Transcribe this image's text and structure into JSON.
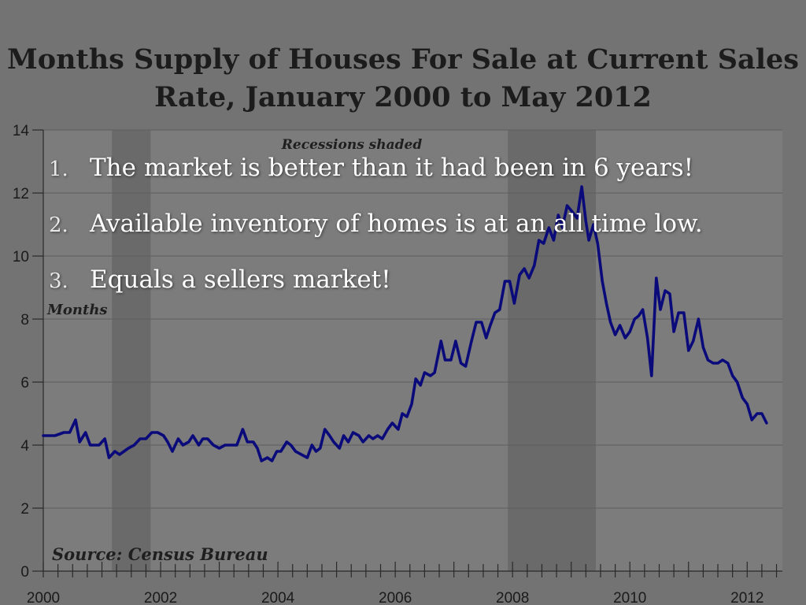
{
  "colors": {
    "background": "#737373",
    "plot_background": "#7c7c7c",
    "recession_band": "#6a6a6a",
    "line": "#0a0a7a",
    "text_overlay": "#ffffff"
  },
  "overlay_points": [
    {
      "number": "1.",
      "text": "The market is better than it had been in 6 years!"
    },
    {
      "number": "2.",
      "text": "Available inventory of homes is at an all time low."
    },
    {
      "number": "3.",
      "text": "Equals a sellers market!"
    }
  ],
  "chart_data": {
    "type": "line",
    "title": "Months Supply of Houses For Sale at Current Sales Rate, January 2000 to May 2012",
    "ylabel": "Months",
    "xlabel": "",
    "annotations": [
      "Recessions shaded",
      "Source: Census Bureau"
    ],
    "ylim": [
      0,
      14
    ],
    "xlim": [
      2000,
      2012.6
    ],
    "y_ticks": [
      0,
      2,
      4,
      6,
      8,
      10,
      12,
      14
    ],
    "x_ticks": [
      2000,
      2002,
      2004,
      2006,
      2008,
      2010,
      2012
    ],
    "grid": true,
    "recessions": [
      [
        2001.17,
        2001.83
      ],
      [
        2007.92,
        2009.42
      ]
    ],
    "series": [
      {
        "values": [
          [
            2000.0,
            4.3
          ],
          [
            2000.2,
            4.3
          ],
          [
            2000.35,
            4.4
          ],
          [
            2000.45,
            4.4
          ],
          [
            2000.55,
            4.8
          ],
          [
            2000.62,
            4.1
          ],
          [
            2000.72,
            4.4
          ],
          [
            2000.8,
            4.0
          ],
          [
            2000.95,
            4.0
          ],
          [
            2001.05,
            4.2
          ],
          [
            2001.12,
            3.6
          ],
          [
            2001.22,
            3.8
          ],
          [
            2001.3,
            3.7
          ],
          [
            2001.45,
            3.9
          ],
          [
            2001.55,
            4.0
          ],
          [
            2001.65,
            4.2
          ],
          [
            2001.75,
            4.2
          ],
          [
            2001.85,
            4.4
          ],
          [
            2001.95,
            4.4
          ],
          [
            2002.05,
            4.3
          ],
          [
            2002.12,
            4.1
          ],
          [
            2002.2,
            3.8
          ],
          [
            2002.3,
            4.2
          ],
          [
            2002.38,
            4.0
          ],
          [
            2002.48,
            4.1
          ],
          [
            2002.55,
            4.3
          ],
          [
            2002.65,
            4.0
          ],
          [
            2002.72,
            4.2
          ],
          [
            2002.8,
            4.2
          ],
          [
            2002.9,
            4.0
          ],
          [
            2003.0,
            3.9
          ],
          [
            2003.1,
            4.0
          ],
          [
            2003.2,
            4.0
          ],
          [
            2003.3,
            4.0
          ],
          [
            2003.4,
            4.5
          ],
          [
            2003.48,
            4.1
          ],
          [
            2003.58,
            4.1
          ],
          [
            2003.65,
            3.9
          ],
          [
            2003.72,
            3.5
          ],
          [
            2003.82,
            3.6
          ],
          [
            2003.9,
            3.5
          ],
          [
            2003.98,
            3.8
          ],
          [
            2004.05,
            3.8
          ],
          [
            2004.15,
            4.1
          ],
          [
            2004.22,
            4.0
          ],
          [
            2004.3,
            3.8
          ],
          [
            2004.4,
            3.7
          ],
          [
            2004.5,
            3.6
          ],
          [
            2004.58,
            4.0
          ],
          [
            2004.65,
            3.8
          ],
          [
            2004.72,
            3.9
          ],
          [
            2004.8,
            4.5
          ],
          [
            2004.88,
            4.3
          ],
          [
            2004.95,
            4.1
          ],
          [
            2005.05,
            3.9
          ],
          [
            2005.12,
            4.3
          ],
          [
            2005.2,
            4.1
          ],
          [
            2005.28,
            4.4
          ],
          [
            2005.38,
            4.3
          ],
          [
            2005.45,
            4.1
          ],
          [
            2005.55,
            4.3
          ],
          [
            2005.62,
            4.2
          ],
          [
            2005.7,
            4.3
          ],
          [
            2005.78,
            4.2
          ],
          [
            2005.87,
            4.5
          ],
          [
            2005.95,
            4.7
          ],
          [
            2006.05,
            4.5
          ],
          [
            2006.12,
            5.0
          ],
          [
            2006.2,
            4.9
          ],
          [
            2006.28,
            5.3
          ],
          [
            2006.35,
            6.1
          ],
          [
            2006.43,
            5.9
          ],
          [
            2006.5,
            6.3
          ],
          [
            2006.6,
            6.2
          ],
          [
            2006.67,
            6.3
          ],
          [
            2006.78,
            7.3
          ],
          [
            2006.85,
            6.7
          ],
          [
            2006.95,
            6.7
          ],
          [
            2007.03,
            7.3
          ],
          [
            2007.12,
            6.6
          ],
          [
            2007.2,
            6.5
          ],
          [
            2007.3,
            7.3
          ],
          [
            2007.38,
            7.9
          ],
          [
            2007.47,
            7.9
          ],
          [
            2007.55,
            7.4
          ],
          [
            2007.62,
            7.8
          ],
          [
            2007.7,
            8.2
          ],
          [
            2007.78,
            8.3
          ],
          [
            2007.87,
            9.2
          ],
          [
            2007.95,
            9.2
          ],
          [
            2008.03,
            8.5
          ],
          [
            2008.12,
            9.4
          ],
          [
            2008.2,
            9.6
          ],
          [
            2008.28,
            9.3
          ],
          [
            2008.37,
            9.7
          ],
          [
            2008.45,
            10.5
          ],
          [
            2008.53,
            10.4
          ],
          [
            2008.62,
            10.9
          ],
          [
            2008.7,
            10.5
          ],
          [
            2008.78,
            11.3
          ],
          [
            2008.85,
            10.9
          ],
          [
            2008.93,
            11.6
          ],
          [
            2009.02,
            11.4
          ],
          [
            2009.1,
            11.2
          ],
          [
            2009.18,
            12.2
          ],
          [
            2009.25,
            11.1
          ],
          [
            2009.3,
            10.5
          ],
          [
            2009.38,
            11.0
          ],
          [
            2009.45,
            10.4
          ],
          [
            2009.53,
            9.2
          ],
          [
            2009.6,
            8.5
          ],
          [
            2009.67,
            7.9
          ],
          [
            2009.75,
            7.5
          ],
          [
            2009.83,
            7.8
          ],
          [
            2009.92,
            7.4
          ],
          [
            2010.0,
            7.6
          ],
          [
            2010.08,
            8.0
          ],
          [
            2010.15,
            8.1
          ],
          [
            2010.22,
            8.3
          ],
          [
            2010.3,
            7.4
          ],
          [
            2010.37,
            6.2
          ],
          [
            2010.45,
            9.3
          ],
          [
            2010.52,
            8.3
          ],
          [
            2010.6,
            8.9
          ],
          [
            2010.68,
            8.8
          ],
          [
            2010.75,
            7.6
          ],
          [
            2010.83,
            8.2
          ],
          [
            2010.92,
            8.2
          ],
          [
            2011.0,
            7.0
          ],
          [
            2011.08,
            7.3
          ],
          [
            2011.17,
            8.0
          ],
          [
            2011.25,
            7.1
          ],
          [
            2011.33,
            6.7
          ],
          [
            2011.42,
            6.6
          ],
          [
            2011.5,
            6.6
          ],
          [
            2011.58,
            6.7
          ],
          [
            2011.67,
            6.6
          ],
          [
            2011.75,
            6.2
          ],
          [
            2011.83,
            6.0
          ],
          [
            2011.92,
            5.5
          ],
          [
            2012.0,
            5.3
          ],
          [
            2012.08,
            4.8
          ],
          [
            2012.17,
            5.0
          ],
          [
            2012.25,
            5.0
          ],
          [
            2012.33,
            4.7
          ]
        ]
      }
    ]
  }
}
